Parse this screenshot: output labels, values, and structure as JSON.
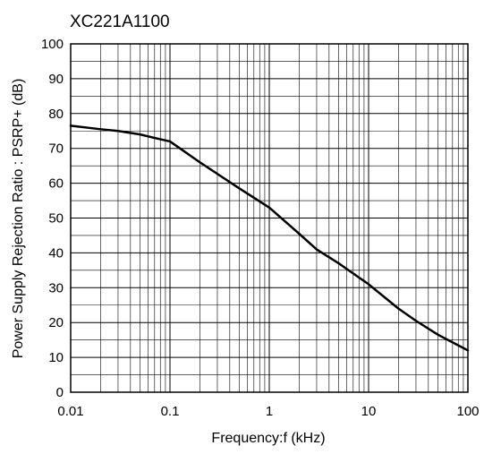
{
  "chart_data": {
    "type": "line",
    "title": "XC221A1100",
    "xlabel": "Frequency:f (kHz)",
    "ylabel": "Power Supply Rejection Ratio : PSRP+ (dB)",
    "x_scale": "log",
    "xlim": [
      0.01,
      100
    ],
    "ylim": [
      0,
      100
    ],
    "x_ticks": [
      "0.01",
      "0.1",
      "1",
      "10",
      "100"
    ],
    "y_ticks": [
      "0",
      "10",
      "20",
      "30",
      "40",
      "50",
      "60",
      "70",
      "80",
      "90",
      "100"
    ],
    "grid": true,
    "series": [
      {
        "x": [
          0.01,
          0.02,
          0.03,
          0.05,
          0.07,
          0.1,
          0.2,
          0.5,
          1,
          2,
          3,
          5,
          10,
          20,
          30,
          50,
          100
        ],
        "y": [
          76.5,
          75.5,
          75,
          74,
          73,
          72,
          66,
          58.5,
          53,
          45.5,
          41,
          37,
          31,
          24,
          20.5,
          16.5,
          12
        ],
        "color": "#000000"
      }
    ]
  }
}
